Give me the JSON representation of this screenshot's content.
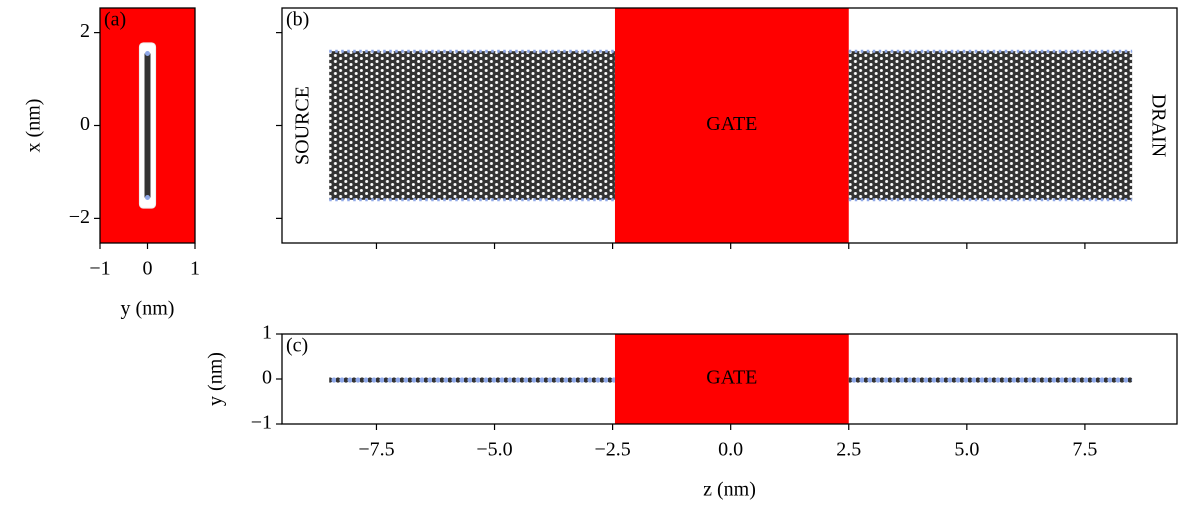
{
  "chart_data": [
    {
      "type": "cross_section",
      "label": "(a)",
      "xlabel": "y (nm)",
      "ylabel": "x (nm)",
      "xlim": [
        -1,
        1
      ],
      "ylim": [
        -2.53,
        2.53
      ],
      "xticks": [
        {
          "value": -1,
          "label": "−1"
        },
        0,
        1
      ],
      "yticks": [
        {
          "value": -2,
          "label": "−2"
        },
        0,
        2
      ],
      "oxide_y": [
        -0.17,
        0.17
      ],
      "oxide_x": [
        -1.78,
        1.78
      ],
      "ribbon_x": [
        -1.55,
        1.55
      ],
      "gate_color": "#ff0000",
      "atom_color": "#333333",
      "edge_color": "#8fa8e8"
    },
    {
      "type": "top_view",
      "label": "(b)",
      "source": "SOURCE",
      "drain": "DRAIN",
      "gate": "GATE",
      "xlim": [
        -9.5,
        9.45
      ],
      "ylim": [
        -2.53,
        2.53
      ],
      "tick_labels": false,
      "xticks": [
        -7.5,
        -5,
        -2.5,
        0,
        2.5,
        5,
        7.5
      ],
      "yticks": [
        -2,
        0,
        2
      ],
      "gate_z": [
        -2.45,
        2.5
      ],
      "ribbon_z": [
        -8.5,
        8.5
      ],
      "ribbon_x": [
        -1.6,
        1.6
      ],
      "gate_color": "#ff0000",
      "atom_color": "#333333",
      "edge_color": "#8fa8e8"
    },
    {
      "type": "side_view",
      "label": "(c)",
      "gate": "GATE",
      "xlabel": "z (nm)",
      "ylabel": "y (nm)",
      "xlim": [
        -9.5,
        9.45
      ],
      "ylim": [
        -1,
        1
      ],
      "xticks": [
        {
          "value": -7.5,
          "label": "−7.5"
        },
        {
          "value": -5,
          "label": "−5.0"
        },
        {
          "value": -2.5,
          "label": "−2.5"
        },
        {
          "value": 0,
          "label": "0.0"
        },
        2.5,
        {
          "value": 5,
          "label": "5.0"
        },
        7.5
      ],
      "yticks": [
        {
          "value": -1,
          "label": "−1"
        },
        0,
        1
      ],
      "gate_z": [
        -2.45,
        2.5
      ],
      "ribbon_z": [
        -8.5,
        8.5
      ],
      "ribbon_y": 0,
      "gate_color": "#ff0000",
      "atom_color": "#333333",
      "edge_color": "#8fa8e8"
    }
  ]
}
